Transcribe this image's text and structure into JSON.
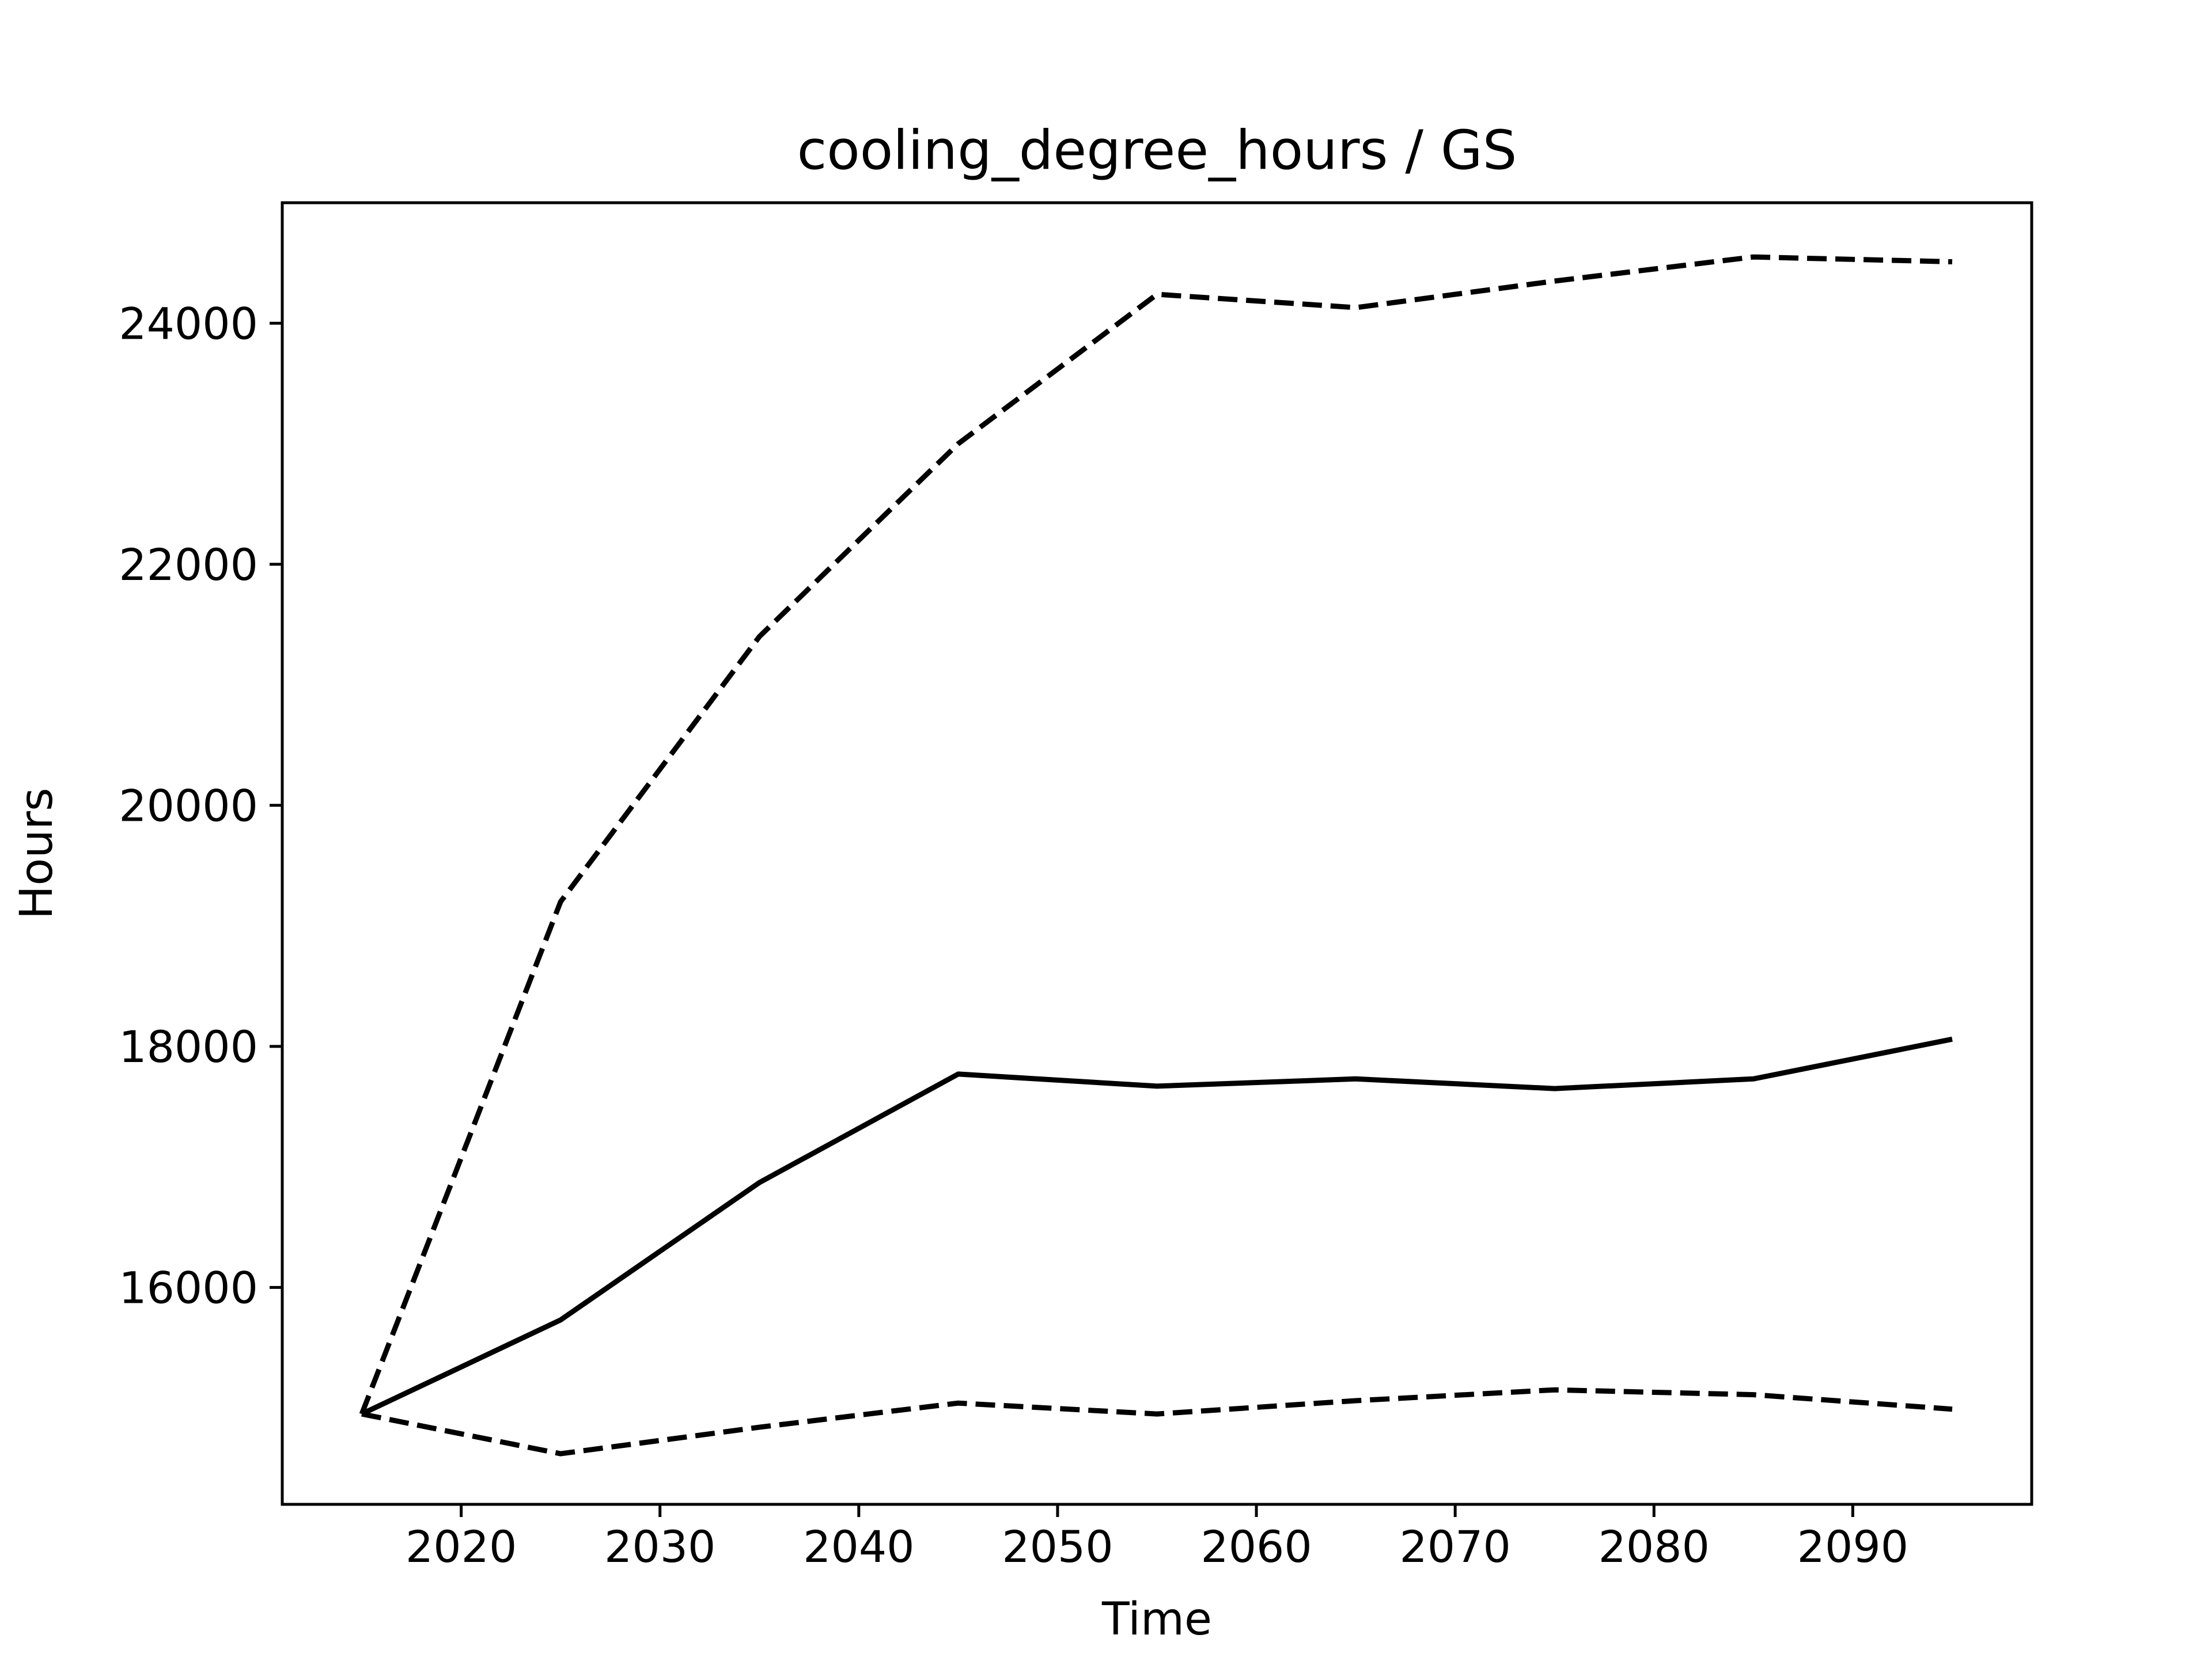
{
  "chart_data": {
    "type": "line",
    "title": "cooling_degree_hours / GS",
    "xlabel": "Time",
    "ylabel": "Hours",
    "x": [
      2015,
      2025,
      2035,
      2045,
      2055,
      2065,
      2075,
      2085,
      2095
    ],
    "xlim": [
      2011,
      2099
    ],
    "ylim": [
      14200,
      25000
    ],
    "xticks": [
      2020,
      2030,
      2040,
      2050,
      2060,
      2070,
      2080,
      2090
    ],
    "yticks": [
      16000,
      18000,
      20000,
      22000,
      24000
    ],
    "grid": false,
    "legend": "none",
    "series": [
      {
        "style": "solid",
        "color": "#000000",
        "values": [
          14950,
          15730,
          16870,
          17770,
          17670,
          17730,
          17650,
          17730,
          18060
        ]
      },
      {
        "style": "dashed",
        "color": "#000000",
        "values": [
          14950,
          19200,
          21400,
          23000,
          24240,
          24130,
          24350,
          24550,
          24510
        ]
      },
      {
        "style": "dashed",
        "color": "#000000",
        "values": [
          14950,
          14620,
          14840,
          15040,
          14950,
          15060,
          15150,
          15110,
          14990
        ]
      }
    ]
  }
}
